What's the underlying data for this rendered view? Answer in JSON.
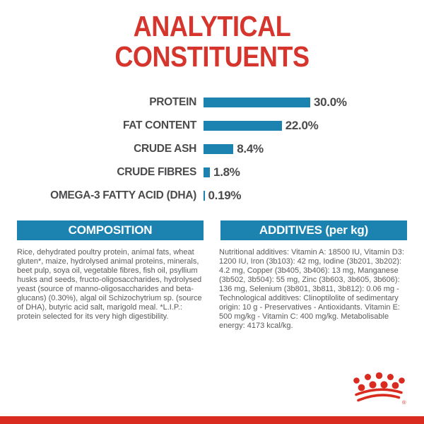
{
  "title": {
    "line1": "ANALYTICAL",
    "line2": "CONSTITUENTS"
  },
  "chart_data": {
    "type": "bar",
    "orientation": "horizontal",
    "title": "ANALYTICAL CONSTITUENTS",
    "categories": [
      "PROTEIN",
      "FAT CONTENT",
      "CRUDE ASH",
      "CRUDE FIBRES",
      "OMEGA-3 FATTY ACID (DHA)"
    ],
    "values": [
      30.0,
      22.0,
      8.4,
      1.8,
      0.19
    ],
    "value_labels": [
      "30.0%",
      "22.0%",
      "8.4%",
      "1.8%",
      "0.19%"
    ],
    "unit": "%",
    "xlim": [
      0,
      30
    ],
    "grid": "off",
    "bar_color": "#1c83b1",
    "label_color": "#4b4b4d"
  },
  "sections": {
    "composition": {
      "heading": "COMPOSITION",
      "body": "Rice, dehydrated poultry protein, animal fats, wheat gluten*, maize, hydrolysed animal proteins, minerals, beet pulp, soya oil, vegetable fibres, fish oil, psyllium husks and seeds, fructo-oligosaccharides, hydrolysed yeast (source of manno-oligosaccharides and beta-glucans) (0.30%), algal oil Schizochytrium sp. (source of DHA), butyric acid salt, marigold meal. *L.I.P.: protein selected for its very high digestibility."
    },
    "additives": {
      "heading": "ADDITIVES (per kg)",
      "body": "Nutritional additives: Vitamin A: 18500 IU, Vitamin D3: 1200 IU, Iron (3b103): 42 mg, Iodine (3b201, 3b202): 4.2 mg, Copper (3b405, 3b406): 13 mg, Manganese (3b502, 3b504): 55 mg, Zinc (3b603, 3b605, 3b606): 136 mg, Selenium (3b801, 3b811, 3b812): 0.06 mg - Technological additives: Clinoptilolite of sedimentary origin: 10 g - Preservatives - Antioxidants. Vitamin E: 500 mg/kg - Vitamin C: 400 mg/kg. Metabolisable energy: 4173 kcal/kg."
    }
  },
  "branding": {
    "logo": "royal-canin-crown-icon",
    "registered_mark": "®"
  },
  "colors": {
    "accent_red": "#d5352c",
    "logo_red": "#d92b1f",
    "accent_blue": "#1c83b1",
    "text_dark": "#4b4b4d",
    "text_body": "#59595b",
    "background": "#ffffff"
  }
}
